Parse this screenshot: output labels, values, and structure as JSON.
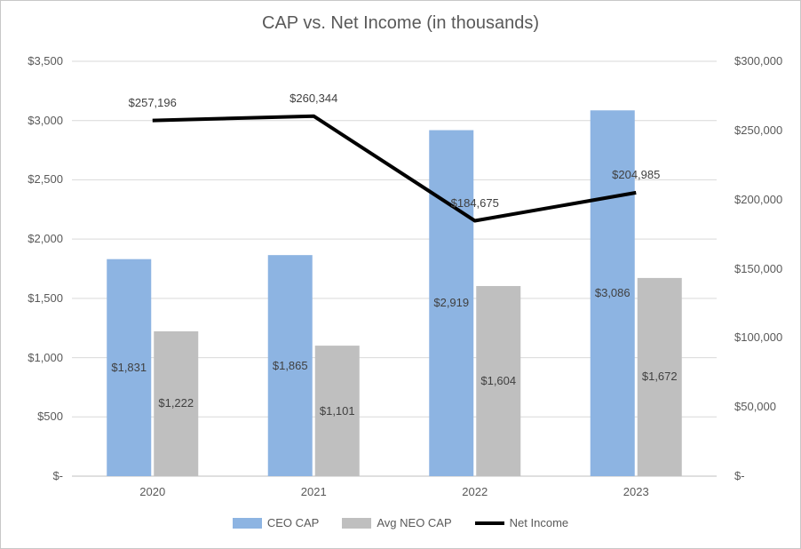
{
  "chart_data": {
    "type": "combo",
    "title": "CAP vs. Net Income (in thousands)",
    "categories": [
      "2020",
      "2021",
      "2022",
      "2023"
    ],
    "series": [
      {
        "name": "CEO CAP",
        "type": "bar",
        "axis": "left",
        "color": "#8DB4E2",
        "values": [
          1831,
          1865,
          2919,
          3086
        ],
        "labels": [
          "$1,831",
          "$1,865",
          "$2,919",
          "$3,086"
        ]
      },
      {
        "name": "Avg NEO CAP",
        "type": "bar",
        "axis": "left",
        "color": "#BFBFBF",
        "values": [
          1222,
          1101,
          1604,
          1672
        ],
        "labels": [
          "$1,222",
          "$1,101",
          "$1,604",
          "$1,672"
        ]
      },
      {
        "name": "Net Income",
        "type": "line",
        "axis": "right",
        "color": "#000000",
        "values": [
          257196,
          260344,
          184675,
          204985
        ],
        "labels": [
          "$257,196",
          "$260,344",
          "$184,675",
          "$204,985"
        ]
      }
    ],
    "left_axis": {
      "min": 0,
      "max": 3500,
      "ticks": [
        "$-",
        "$500",
        "$1,000",
        "$1,500",
        "$2,000",
        "$2,500",
        "$3,000",
        "$3,500"
      ]
    },
    "right_axis": {
      "min": 0,
      "max": 300000,
      "ticks": [
        "$-",
        "$50,000",
        "$100,000",
        "$150,000",
        "$200,000",
        "$250,000",
        "$300,000"
      ]
    },
    "legend": {
      "position": "bottom",
      "entries": [
        "CEO CAP",
        "Avg NEO CAP",
        "Net Income"
      ]
    },
    "grid": true,
    "colors": {
      "gridline": "#D9D9D9",
      "axis_line": "#BFBFBF",
      "axis_text": "#595959",
      "label_text": "#404040"
    }
  }
}
